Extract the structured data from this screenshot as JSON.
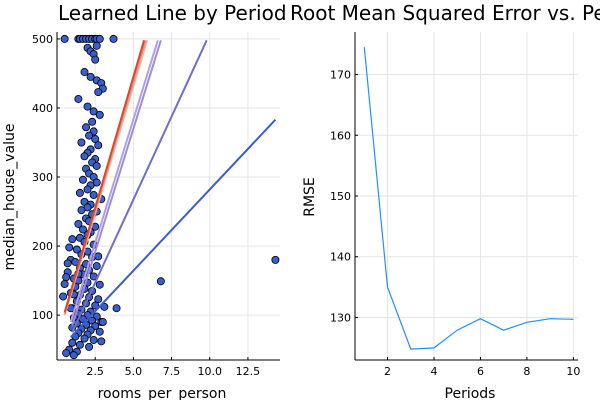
{
  "chart_data": [
    {
      "type": "scatter",
      "title": "Learned Line by Period",
      "xlabel": "rooms_per_person",
      "ylabel": "median_house_value",
      "xlim": [
        0.0,
        14.6
      ],
      "ylim": [
        35,
        510
      ],
      "xticks": [
        "2.5",
        "5.0",
        "7.5",
        "10.0",
        "12.5"
      ],
      "xtick_values": [
        2.5,
        5.0,
        7.5,
        10.0,
        12.5
      ],
      "yticks": [
        "100",
        "200",
        "300",
        "400",
        "500"
      ],
      "ytick_values": [
        100,
        200,
        300,
        400,
        500
      ],
      "grid": true,
      "marker_color": "#3a5fcd",
      "points": [
        [
          0.5,
          500
        ],
        [
          1.4,
          500
        ],
        [
          1.5,
          500
        ],
        [
          1.7,
          500
        ],
        [
          1.9,
          500
        ],
        [
          2.1,
          500
        ],
        [
          2.3,
          500
        ],
        [
          2.5,
          500
        ],
        [
          2.6,
          500
        ],
        [
          2.8,
          500
        ],
        [
          3.7,
          500
        ],
        [
          2.6,
          490
        ],
        [
          2.0,
          487
        ],
        [
          2.2,
          482
        ],
        [
          2.4,
          478
        ],
        [
          2.5,
          470
        ],
        [
          1.8,
          452
        ],
        [
          2.2,
          445
        ],
        [
          2.6,
          440
        ],
        [
          2.9,
          436
        ],
        [
          3.0,
          428
        ],
        [
          2.7,
          423
        ],
        [
          1.4,
          413
        ],
        [
          2.0,
          402
        ],
        [
          2.4,
          395
        ],
        [
          2.8,
          390
        ],
        [
          2.3,
          380
        ],
        [
          1.9,
          372
        ],
        [
          2.4,
          366
        ],
        [
          2.1,
          360
        ],
        [
          2.5,
          355
        ],
        [
          1.6,
          350
        ],
        [
          2.7,
          346
        ],
        [
          2.2,
          340
        ],
        [
          2.0,
          335
        ],
        [
          1.8,
          330
        ],
        [
          2.5,
          326
        ],
        [
          2.3,
          321
        ],
        [
          2.6,
          316
        ],
        [
          1.9,
          312
        ],
        [
          2.1,
          305
        ],
        [
          2.4,
          300
        ],
        [
          1.7,
          296
        ],
        [
          2.6,
          292
        ],
        [
          2.2,
          288
        ],
        [
          2.0,
          282
        ],
        [
          1.5,
          277
        ],
        [
          2.4,
          274
        ],
        [
          2.9,
          268
        ],
        [
          1.8,
          264
        ],
        [
          2.2,
          260
        ],
        [
          2.0,
          256
        ],
        [
          1.6,
          252
        ],
        [
          2.6,
          250
        ],
        [
          2.3,
          246
        ],
        [
          1.9,
          240
        ],
        [
          2.1,
          236
        ],
        [
          1.4,
          232
        ],
        [
          2.5,
          228
        ],
        [
          1.7,
          224
        ],
        [
          2.2,
          220
        ],
        [
          2.0,
          216
        ],
        [
          1.5,
          212
        ],
        [
          1.0,
          210
        ],
        [
          1.8,
          206
        ],
        [
          2.4,
          202
        ],
        [
          0.8,
          198
        ],
        [
          1.3,
          195
        ],
        [
          2.0,
          192
        ],
        [
          1.6,
          188
        ],
        [
          2.3,
          184
        ],
        [
          0.9,
          180
        ],
        [
          1.2,
          177
        ],
        [
          1.9,
          174
        ],
        [
          2.6,
          171
        ],
        [
          1.5,
          168
        ],
        [
          2.1,
          165
        ],
        [
          0.7,
          162
        ],
        [
          1.7,
          159
        ],
        [
          2.4,
          156
        ],
        [
          1.1,
          153
        ],
        [
          1.4,
          150
        ],
        [
          2.0,
          147
        ],
        [
          2.8,
          144
        ],
        [
          1.2,
          141
        ],
        [
          1.8,
          138
        ],
        [
          2.3,
          135
        ],
        [
          0.9,
          132
        ],
        [
          1.5,
          129
        ],
        [
          2.1,
          126
        ],
        [
          2.7,
          123
        ],
        [
          1.3,
          120
        ],
        [
          1.9,
          117
        ],
        [
          2.5,
          114
        ],
        [
          3.1,
          112
        ],
        [
          1.0,
          110
        ],
        [
          1.6,
          108
        ],
        [
          2.2,
          105
        ],
        [
          1.4,
          102
        ],
        [
          2.0,
          100
        ],
        [
          2.6,
          98
        ],
        [
          1.1,
          96
        ],
        [
          1.7,
          94
        ],
        [
          2.3,
          92
        ],
        [
          2.9,
          90
        ],
        [
          1.3,
          88
        ],
        [
          1.9,
          86
        ],
        [
          2.5,
          84
        ],
        [
          1.0,
          82
        ],
        [
          1.6,
          80
        ],
        [
          2.2,
          78
        ],
        [
          2.8,
          76
        ],
        [
          1.4,
          74
        ],
        [
          2.0,
          72
        ],
        [
          1.2,
          69
        ],
        [
          1.8,
          66
        ],
        [
          2.4,
          64
        ],
        [
          1.0,
          60
        ],
        [
          1.5,
          57
        ],
        [
          2.1,
          54
        ],
        [
          0.8,
          50
        ],
        [
          1.3,
          47
        ],
        [
          0.6,
          45
        ],
        [
          1.1,
          42
        ],
        [
          0.4,
          127
        ],
        [
          0.6,
          155
        ],
        [
          0.7,
          175
        ],
        [
          0.5,
          145
        ],
        [
          2.9,
          62
        ],
        [
          3.0,
          90
        ],
        [
          1.1,
          130
        ],
        [
          1.4,
          160
        ],
        [
          0.9,
          110
        ],
        [
          2.7,
          185
        ],
        [
          3.9,
          110
        ],
        [
          6.8,
          149
        ],
        [
          14.3,
          180
        ]
      ],
      "lines": [
        {
          "color": "#3a5fcd",
          "points": [
            [
              0.9,
              68
            ],
            [
              14.3,
              383
            ]
          ]
        },
        {
          "color": "#6e6ecf",
          "points": [
            [
              1.0,
              75
            ],
            [
              9.8,
              498
            ]
          ]
        },
        {
          "color": "#9b8fdc",
          "points": [
            [
              1.0,
              85
            ],
            [
              6.8,
              498
            ]
          ]
        },
        {
          "color": "#b59ee0",
          "points": [
            [
              0.9,
              90
            ],
            [
              6.6,
              498
            ]
          ]
        },
        {
          "color": "#f5b3a8",
          "points": [
            [
              0.5,
              100
            ],
            [
              5.9,
              498
            ]
          ]
        },
        {
          "color": "#e8907e",
          "points": [
            [
              0.5,
              102
            ],
            [
              5.8,
              498
            ]
          ]
        },
        {
          "color": "#d84a2e",
          "points": [
            [
              0.5,
              104
            ],
            [
              5.7,
              498
            ]
          ]
        }
      ]
    },
    {
      "type": "line",
      "title": "Root Mean Squared Error vs. Periods",
      "xlabel": "Periods",
      "ylabel": "RMSE",
      "xlim": [
        0.6,
        10.2
      ],
      "ylim": [
        123,
        177
      ],
      "xticks": [
        "2",
        "4",
        "6",
        "8",
        "10"
      ],
      "xtick_values": [
        2,
        4,
        6,
        8,
        10
      ],
      "yticks": [
        "130",
        "140",
        "150",
        "160",
        "170"
      ],
      "ytick_values": [
        130,
        140,
        150,
        160,
        170
      ],
      "grid": true,
      "line_color": "#1e90ff",
      "x": [
        1,
        2,
        3,
        4,
        5,
        6,
        7,
        8,
        9,
        10
      ],
      "values": [
        174.5,
        135.0,
        124.8,
        125.0,
        127.9,
        129.8,
        127.9,
        129.2,
        129.8,
        129.7
      ]
    }
  ]
}
